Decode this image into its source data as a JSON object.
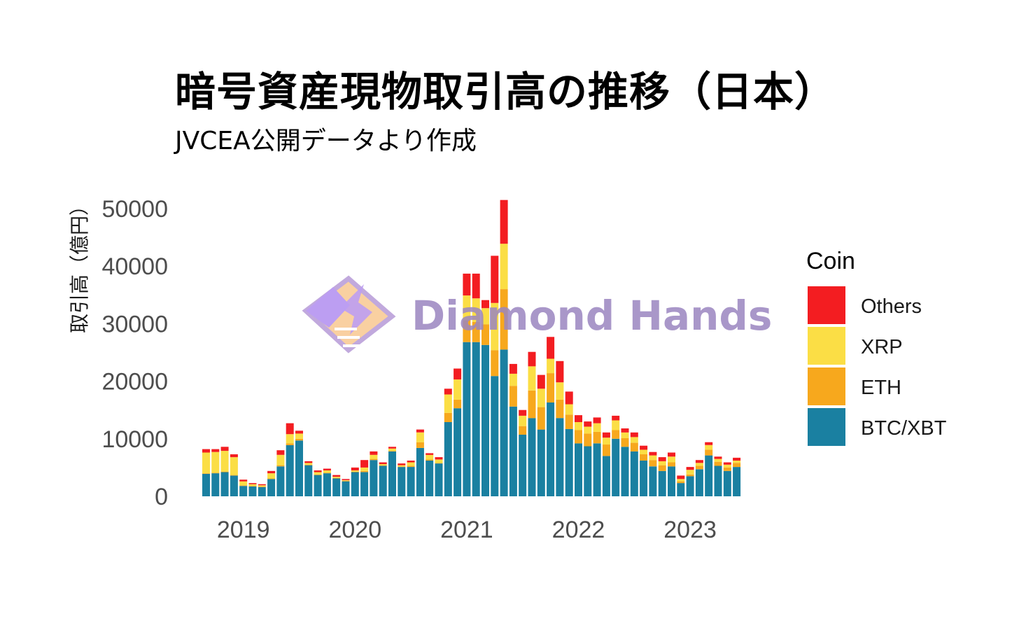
{
  "chart_data": {
    "type": "bar",
    "stacked": true,
    "title": "暗号資産現物取引高の推移（日本）",
    "subtitle": "JVCEA公開データより作成",
    "xlabel": "",
    "ylabel": "取引高（億円）",
    "ylim": [
      0,
      52000
    ],
    "yticks": [
      "0",
      "10000",
      "20000",
      "30000",
      "40000",
      "50000"
    ],
    "xticks": [
      "2019",
      "2020",
      "2021",
      "2022",
      "2023"
    ],
    "grid": false,
    "legend": {
      "title": "Coin",
      "position": "right",
      "items": [
        "Others",
        "XRP",
        "ETH",
        "BTC/XBT"
      ]
    },
    "colors": {
      "BTC/XBT": "#1a80a1",
      "ETH": "#f7a81d",
      "XRP": "#fbde45",
      "Others": "#f31d21"
    },
    "categories": [
      "2018-09",
      "2018-10",
      "2018-11",
      "2018-12",
      "2019-01",
      "2019-02",
      "2019-03",
      "2019-04",
      "2019-05",
      "2019-06",
      "2019-07",
      "2019-08",
      "2019-09",
      "2019-10",
      "2019-11",
      "2019-12",
      "2020-01",
      "2020-02",
      "2020-03",
      "2020-04",
      "2020-05",
      "2020-06",
      "2020-07",
      "2020-08",
      "2020-09",
      "2020-10",
      "2020-11",
      "2020-12",
      "2021-01",
      "2021-02",
      "2021-03",
      "2021-04",
      "2021-05",
      "2021-06",
      "2021-07",
      "2021-08",
      "2021-09",
      "2021-10",
      "2021-11",
      "2021-12",
      "2022-01",
      "2022-02",
      "2022-03",
      "2022-04",
      "2022-05",
      "2022-06",
      "2022-07",
      "2022-08",
      "2022-09",
      "2022-10",
      "2022-11",
      "2022-12",
      "2023-01",
      "2023-02",
      "2023-03",
      "2023-04",
      "2023-05",
      "2023-06"
    ],
    "series": [
      {
        "name": "BTC/XBT",
        "values": [
          3900,
          4000,
          4200,
          3600,
          1800,
          1700,
          1600,
          3000,
          5200,
          8900,
          9700,
          5400,
          3700,
          4000,
          3100,
          2600,
          4200,
          4200,
          6300,
          5300,
          7800,
          5100,
          5100,
          8400,
          6200,
          5700,
          12900,
          15300,
          26800,
          26800,
          26300,
          20900,
          25500,
          15600,
          10700,
          13600,
          11600,
          16300,
          13600,
          11700,
          9200,
          8700,
          9200,
          7000,
          10000,
          8600,
          7800,
          6200,
          5200,
          4400,
          5200,
          2300,
          3500,
          4700,
          7100,
          5300,
          4400,
          5100
        ]
      },
      {
        "name": "ETH",
        "values": [
          100,
          100,
          100,
          100,
          100,
          100,
          100,
          100,
          200,
          300,
          300,
          100,
          100,
          100,
          100,
          100,
          100,
          200,
          200,
          100,
          100,
          100,
          200,
          1000,
          200,
          100,
          1600,
          1500,
          3800,
          3500,
          3600,
          4500,
          10500,
          3600,
          1500,
          4800,
          3900,
          5100,
          3200,
          2500,
          2300,
          2200,
          2000,
          2000,
          1500,
          1500,
          1500,
          1100,
          1100,
          1000,
          700,
          300,
          300,
          600,
          1000,
          700,
          600,
          700
        ]
      },
      {
        "name": "XRP",
        "values": [
          3600,
          3600,
          3600,
          3100,
          700,
          300,
          200,
          900,
          1800,
          1600,
          900,
          300,
          400,
          400,
          200,
          100,
          200,
          600,
          700,
          200,
          400,
          200,
          600,
          1700,
          800,
          600,
          3200,
          3500,
          4300,
          4100,
          2800,
          8200,
          7900,
          2100,
          1800,
          4200,
          3200,
          2500,
          3000,
          1800,
          1400,
          1200,
          1500,
          1200,
          1700,
          1000,
          1000,
          800,
          800,
          700,
          1000,
          400,
          800,
          500,
          800,
          500,
          500,
          400
        ]
      },
      {
        "name": "Others",
        "values": [
          600,
          500,
          700,
          500,
          300,
          200,
          200,
          400,
          800,
          1900,
          500,
          300,
          300,
          300,
          300,
          200,
          500,
          1300,
          600,
          300,
          300,
          300,
          300,
          500,
          300,
          400,
          1000,
          1900,
          3800,
          4300,
          1400,
          8200,
          7600,
          1700,
          1000,
          2500,
          2400,
          3800,
          3700,
          2200,
          1200,
          900,
          1000,
          900,
          800,
          700,
          800,
          700,
          600,
          700,
          700,
          600,
          500,
          500,
          500,
          400,
          400,
          500
        ]
      }
    ]
  },
  "watermark": {
    "text": "Diamond Hands",
    "logo_name": "handshake-diamond-logo"
  }
}
